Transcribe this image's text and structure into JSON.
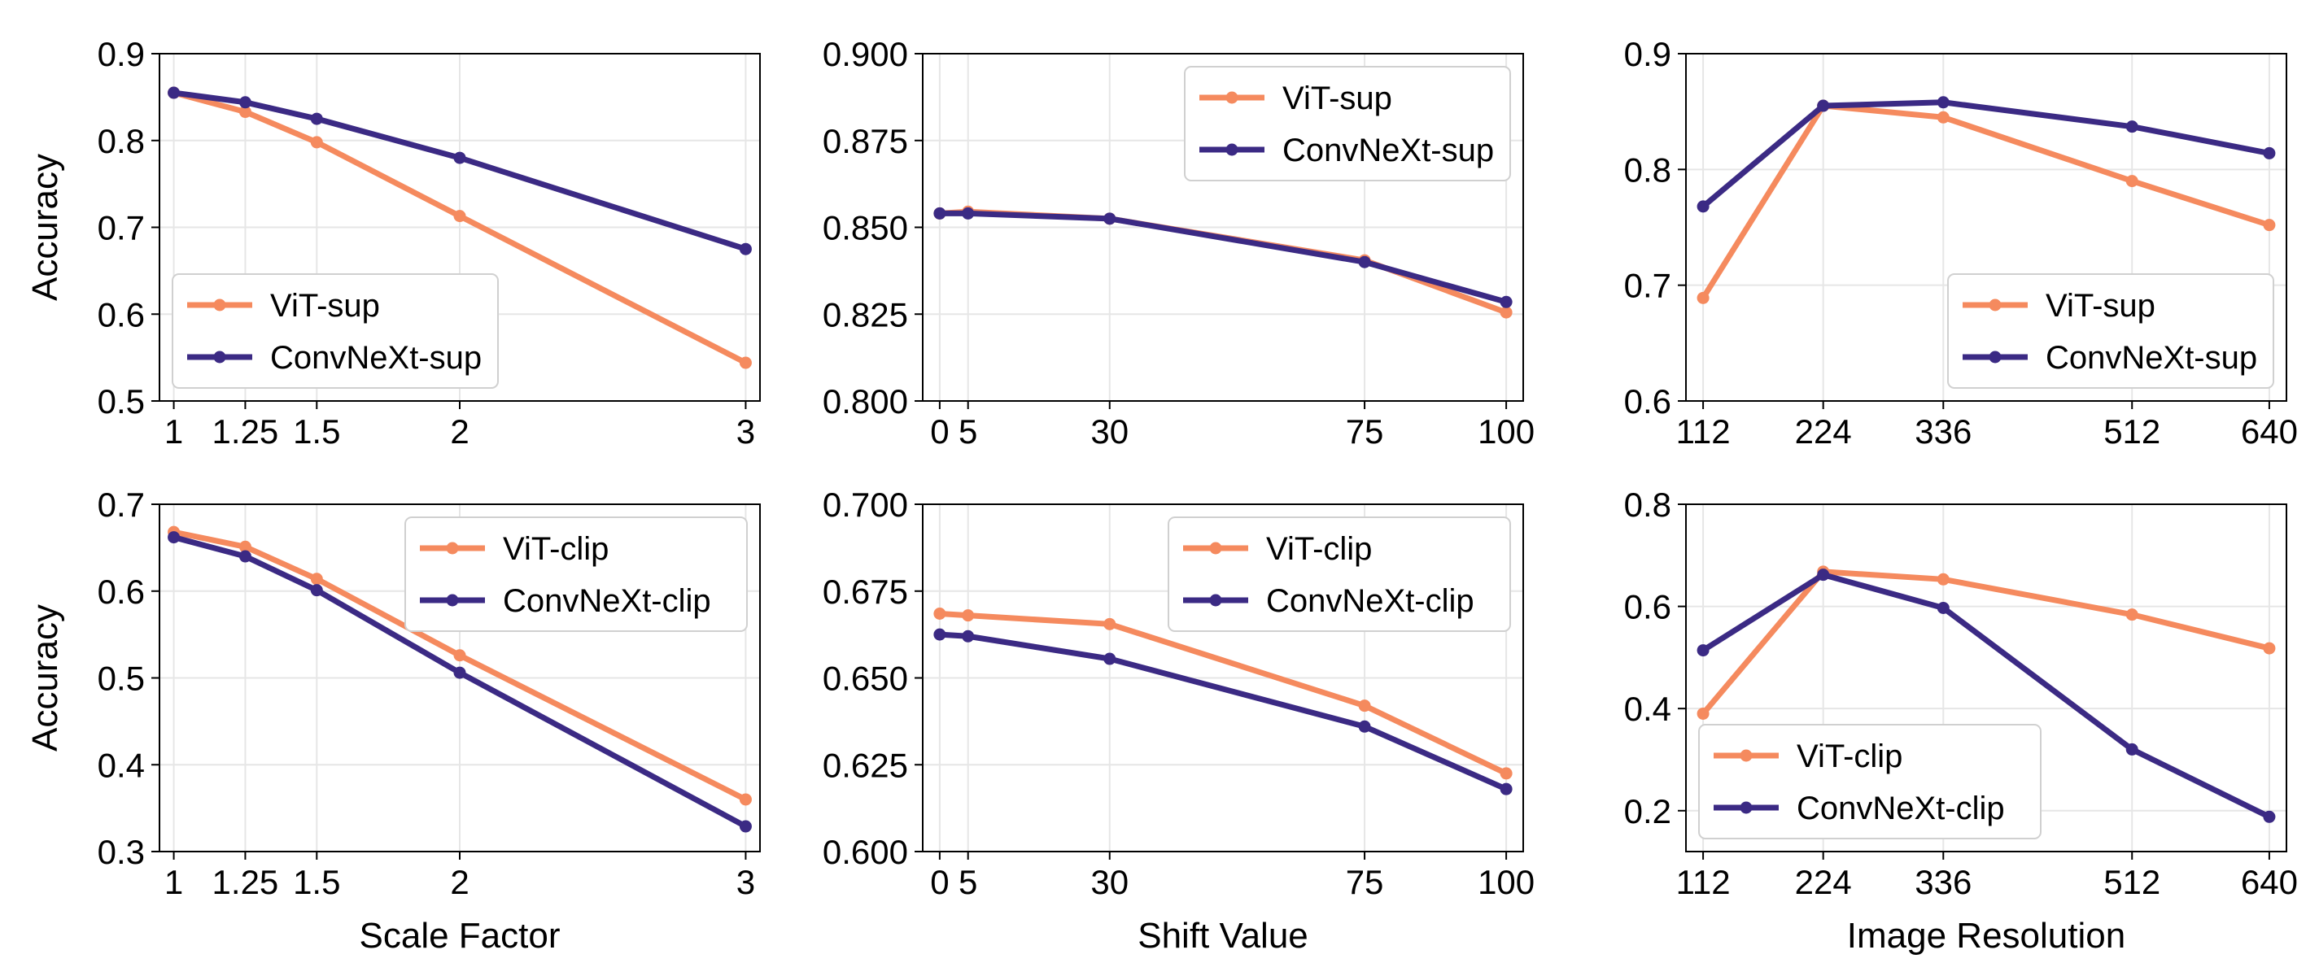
{
  "colors": {
    "vit": "#F58A5E",
    "convnext": "#3B2A84"
  },
  "chart_data": [
    {
      "type": "line",
      "xlabel": "",
      "ylabel": "Accuracy",
      "x": [
        1,
        1.25,
        1.5,
        2,
        3
      ],
      "xticks": [
        1,
        1.25,
        1.5,
        2,
        3
      ],
      "xtick_labels": [
        "1",
        "1.25",
        "1.5",
        "2",
        "3"
      ],
      "xlim": [
        0.95,
        3.05
      ],
      "ylim": [
        0.5,
        0.9
      ],
      "yticks": [
        0.5,
        0.6,
        0.7,
        0.8,
        0.9
      ],
      "ytick_labels": [
        "0.5",
        "0.6",
        "0.7",
        "0.8",
        "0.9"
      ],
      "legend": "lower-left",
      "grid": true,
      "series": [
        {
          "name": "ViT-sup",
          "color_key": "vit",
          "values": [
            0.855,
            0.833,
            0.798,
            0.713,
            0.544
          ]
        },
        {
          "name": "ConvNeXt-sup",
          "color_key": "convnext",
          "values": [
            0.855,
            0.844,
            0.825,
            0.78,
            0.675
          ]
        }
      ]
    },
    {
      "type": "line",
      "xlabel": "",
      "ylabel": "",
      "x": [
        0,
        5,
        30,
        75,
        100
      ],
      "xticks": [
        0,
        5,
        30,
        75,
        100
      ],
      "xtick_labels": [
        "0",
        "5",
        "30",
        "75",
        "100"
      ],
      "xlim": [
        -3,
        103
      ],
      "ylim": [
        0.8,
        0.9
      ],
      "yticks": [
        0.8,
        0.825,
        0.85,
        0.875,
        0.9
      ],
      "ytick_labels": [
        "0.800",
        "0.825",
        "0.850",
        "0.875",
        "0.900"
      ],
      "legend": "top-right",
      "grid": true,
      "series": [
        {
          "name": "ViT-sup",
          "color_key": "vit",
          "values": [
            0.854,
            0.8545,
            0.8525,
            0.8405,
            0.8255
          ]
        },
        {
          "name": "ConvNeXt-sup",
          "color_key": "convnext",
          "values": [
            0.854,
            0.854,
            0.8525,
            0.84,
            0.8285
          ]
        }
      ]
    },
    {
      "type": "line",
      "xlabel": "",
      "ylabel": "",
      "x": [
        112,
        224,
        336,
        512,
        640
      ],
      "xticks": [
        112,
        224,
        336,
        512,
        640
      ],
      "xtick_labels": [
        "112",
        "224",
        "336",
        "512",
        "640"
      ],
      "xlim": [
        96,
        656
      ],
      "ylim": [
        0.6,
        0.9
      ],
      "yticks": [
        0.6,
        0.7,
        0.8,
        0.9
      ],
      "ytick_labels": [
        "0.6",
        "0.7",
        "0.8",
        "0.9"
      ],
      "legend": "lower-right",
      "grid": true,
      "series": [
        {
          "name": "ViT-sup",
          "color_key": "vit",
          "values": [
            0.689,
            0.855,
            0.845,
            0.79,
            0.752
          ]
        },
        {
          "name": "ConvNeXt-sup",
          "color_key": "convnext",
          "values": [
            0.768,
            0.855,
            0.858,
            0.837,
            0.814
          ]
        }
      ]
    },
    {
      "type": "line",
      "xlabel": "Scale Factor",
      "ylabel": "Accuracy",
      "x": [
        1,
        1.25,
        1.5,
        2,
        3
      ],
      "xticks": [
        1,
        1.25,
        1.5,
        2,
        3
      ],
      "xtick_labels": [
        "1",
        "1.25",
        "1.5",
        "2",
        "3"
      ],
      "xlim": [
        0.95,
        3.05
      ],
      "ylim": [
        0.3,
        0.7
      ],
      "yticks": [
        0.3,
        0.4,
        0.5,
        0.6,
        0.7
      ],
      "ytick_labels": [
        "0.3",
        "0.4",
        "0.5",
        "0.6",
        "0.7"
      ],
      "legend": "top-right",
      "grid": true,
      "series": [
        {
          "name": "ViT-clip",
          "color_key": "vit",
          "values": [
            0.668,
            0.651,
            0.614,
            0.526,
            0.36
          ]
        },
        {
          "name": "ConvNeXt-clip",
          "color_key": "convnext",
          "values": [
            0.662,
            0.64,
            0.601,
            0.506,
            0.329
          ]
        }
      ]
    },
    {
      "type": "line",
      "xlabel": "Shift Value",
      "ylabel": "",
      "x": [
        0,
        5,
        30,
        75,
        100
      ],
      "xticks": [
        0,
        5,
        30,
        75,
        100
      ],
      "xtick_labels": [
        "0",
        "5",
        "30",
        "75",
        "100"
      ],
      "xlim": [
        -3,
        103
      ],
      "ylim": [
        0.6,
        0.7
      ],
      "yticks": [
        0.6,
        0.625,
        0.65,
        0.675,
        0.7
      ],
      "ytick_labels": [
        "0.600",
        "0.625",
        "0.650",
        "0.675",
        "0.700"
      ],
      "legend": "top-right",
      "grid": true,
      "series": [
        {
          "name": "ViT-clip",
          "color_key": "vit",
          "values": [
            0.6685,
            0.668,
            0.6655,
            0.642,
            0.6225
          ]
        },
        {
          "name": "ConvNeXt-clip",
          "color_key": "convnext",
          "values": [
            0.6625,
            0.662,
            0.6555,
            0.636,
            0.618
          ]
        }
      ]
    },
    {
      "type": "line",
      "xlabel": "Image Resolution",
      "ylabel": "",
      "x": [
        112,
        224,
        336,
        512,
        640
      ],
      "xticks": [
        112,
        224,
        336,
        512,
        640
      ],
      "xtick_labels": [
        "112",
        "224",
        "336",
        "512",
        "640"
      ],
      "xlim": [
        96,
        656
      ],
      "ylim": [
        0.12,
        0.8
      ],
      "yticks": [
        0.2,
        0.4,
        0.6,
        0.8
      ],
      "ytick_labels": [
        "0.2",
        "0.4",
        "0.6",
        "0.8"
      ],
      "legend": "lower-left",
      "grid": true,
      "series": [
        {
          "name": "ViT-clip",
          "color_key": "vit",
          "values": [
            0.39,
            0.668,
            0.653,
            0.584,
            0.518
          ]
        },
        {
          "name": "ConvNeXt-clip",
          "color_key": "convnext",
          "values": [
            0.514,
            0.662,
            0.597,
            0.32,
            0.188
          ]
        }
      ]
    }
  ]
}
